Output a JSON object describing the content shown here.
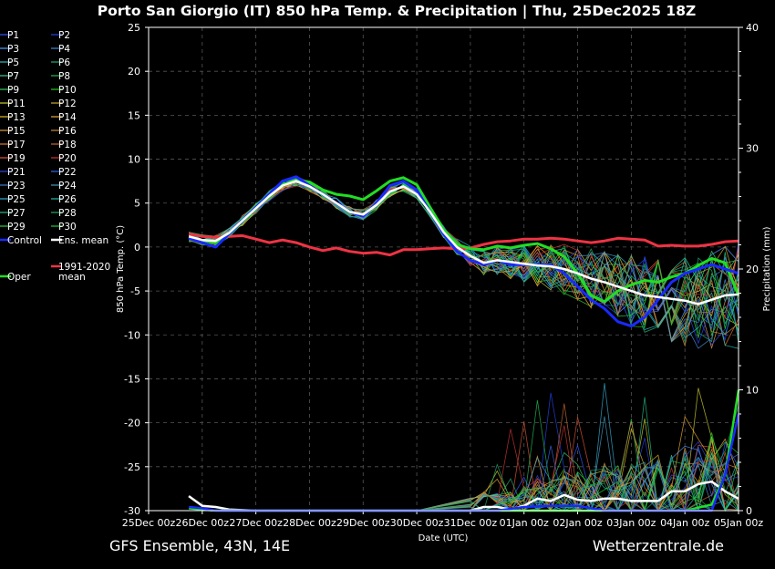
{
  "header": {
    "title": "Porto San Giorgio  (IT)  850 hPa Temp. & Precipitation | Thu, 25Dec2025 18Z"
  },
  "footer": {
    "model": "GFS Ensemble, 43N, 14E",
    "source": "Wetterzentrale.de"
  },
  "legend": {
    "col1": [
      {
        "label": "P1",
        "color": "#3355ff"
      },
      {
        "label": "P3",
        "color": "#5599ff"
      },
      {
        "label": "P5",
        "color": "#33bbbb"
      },
      {
        "label": "P7",
        "color": "#33cc99"
      },
      {
        "label": "P9",
        "color": "#33cc66"
      },
      {
        "label": "P11",
        "color": "#cccc33"
      },
      {
        "label": "P13",
        "color": "#ddbb22"
      },
      {
        "label": "P15",
        "color": "#dd9944"
      },
      {
        "label": "P17",
        "color": "#dd7733"
      },
      {
        "label": "P19",
        "color": "#dd5533"
      },
      {
        "label": "P21",
        "color": "#3344dd"
      },
      {
        "label": "P23",
        "color": "#4477cc"
      },
      {
        "label": "P25",
        "color": "#33aacc"
      },
      {
        "label": "P27",
        "color": "#22bb88"
      },
      {
        "label": "P29",
        "color": "#33cc44"
      }
    ],
    "col2": [
      {
        "label": "P2",
        "color": "#2244ee"
      },
      {
        "label": "P4",
        "color": "#4488cc"
      },
      {
        "label": "P6",
        "color": "#22aa77"
      },
      {
        "label": "P8",
        "color": "#22bb55"
      },
      {
        "label": "P10",
        "color": "#22cc22"
      },
      {
        "label": "P12",
        "color": "#ccaa33"
      },
      {
        "label": "P14",
        "color": "#eeaa33"
      },
      {
        "label": "P16",
        "color": "#cc8844"
      },
      {
        "label": "P18",
        "color": "#cc6633"
      },
      {
        "label": "P20",
        "color": "#cc3333"
      },
      {
        "label": "P22",
        "color": "#3366ee"
      },
      {
        "label": "P24",
        "color": "#4499bb"
      },
      {
        "label": "P26",
        "color": "#22bbaa"
      },
      {
        "label": "P28",
        "color": "#22aa66"
      },
      {
        "label": "P30",
        "color": "#22cc33"
      }
    ],
    "control": {
      "label": "Control",
      "color": "#1a2aff"
    },
    "ens_mean": {
      "label": "Ens. mean",
      "color": "#ffffff"
    },
    "clim": {
      "label_line1": "1991-2020",
      "label_line2": "mean",
      "color": "#ee3344"
    },
    "oper": {
      "label": "Oper",
      "color": "#22dd22"
    }
  },
  "colors": {
    "background": "#000000",
    "grid": "#555555",
    "axis": "#ffffff",
    "control": "#1a2aff",
    "ens_mean": "#ffffff",
    "clim": "#ee3344",
    "oper": "#22dd22"
  },
  "chart_data": {
    "type": "line",
    "xlabel": "Date (UTC)",
    "ylabel": "850 hPa Temp. (°C)",
    "y2label": "Precipitation (mm)",
    "ylim": [
      -30,
      25
    ],
    "y2lim": [
      0,
      40
    ],
    "xlim": [
      0,
      264
    ],
    "x_unit": "hours after 25Dec 00z",
    "x_ticks": [
      {
        "x": 0,
        "label": "25Dec 00z"
      },
      {
        "x": 24,
        "label": "26Dec 00z"
      },
      {
        "x": 48,
        "label": "27Dec 00z"
      },
      {
        "x": 72,
        "label": "28Dec 00z"
      },
      {
        "x": 96,
        "label": "29Dec 00z"
      },
      {
        "x": 120,
        "label": "30Dec 00z"
      },
      {
        "x": 144,
        "label": "31Dec 00z"
      },
      {
        "x": 168,
        "label": "01Jan 00z"
      },
      {
        "x": 192,
        "label": "02Jan 00z"
      },
      {
        "x": 216,
        "label": "03Jan 00z"
      },
      {
        "x": 240,
        "label": "04Jan 00z"
      },
      {
        "x": 264,
        "label": "05Jan 00z"
      }
    ],
    "y_ticks": [
      25,
      20,
      15,
      10,
      5,
      0,
      -5,
      -10,
      -15,
      -20,
      -25,
      -30
    ],
    "y2_ticks": [
      40,
      30,
      20,
      10,
      0
    ],
    "grid": true,
    "legend_position": "left-outside",
    "temperature_series": [
      {
        "name": "Control",
        "x": [
          18,
          24,
          30,
          36,
          42,
          48,
          54,
          60,
          66,
          72,
          78,
          84,
          90,
          96,
          102,
          108,
          114,
          120,
          126,
          132,
          138,
          144,
          150,
          156,
          162,
          168,
          174,
          180,
          186,
          192,
          198,
          204,
          210,
          216,
          222,
          228,
          234,
          240,
          246,
          252,
          258,
          264
        ],
        "values": [
          1,
          0.5,
          0,
          1.5,
          3,
          4.5,
          6,
          7.5,
          8,
          7,
          6,
          5,
          4,
          3.5,
          5,
          7,
          7.5,
          6.5,
          4,
          1.5,
          -0.5,
          -1.5,
          -2,
          -1.5,
          -2,
          -2,
          -2,
          -2,
          -3,
          -4.5,
          -6,
          -7,
          -8.5,
          -9,
          -8,
          -6,
          -4,
          -3,
          -2.5,
          -2,
          -2.5,
          -3
        ]
      },
      {
        "name": "Ens. mean",
        "x": [
          18,
          24,
          30,
          36,
          42,
          48,
          54,
          60,
          66,
          72,
          78,
          84,
          90,
          96,
          102,
          108,
          114,
          120,
          126,
          132,
          138,
          144,
          150,
          156,
          162,
          168,
          174,
          180,
          186,
          192,
          198,
          204,
          210,
          216,
          222,
          228,
          234,
          240,
          246,
          252,
          258,
          264
        ],
        "values": [
          1.2,
          0.8,
          0.7,
          1.6,
          3,
          4.4,
          5.8,
          7,
          7.5,
          6.9,
          6,
          5,
          4,
          3.7,
          4.8,
          6.3,
          6.9,
          6,
          4,
          1.7,
          0,
          -1,
          -1.8,
          -1.5,
          -1.7,
          -1.9,
          -2.1,
          -2.2,
          -2.5,
          -3,
          -3.6,
          -4,
          -4.5,
          -5,
          -5.5,
          -5.7,
          -5.9,
          -6.1,
          -6.5,
          -6,
          -5.5,
          -5.4
        ]
      },
      {
        "name": "1991-2020 mean",
        "x": [
          18,
          24,
          30,
          36,
          42,
          48,
          54,
          60,
          66,
          72,
          78,
          84,
          90,
          96,
          102,
          108,
          114,
          120,
          126,
          132,
          138,
          144,
          150,
          156,
          162,
          168,
          174,
          180,
          186,
          192,
          198,
          204,
          210,
          216,
          222,
          228,
          234,
          240,
          246,
          252,
          258,
          264
        ],
        "values": [
          1.5,
          1.2,
          1.1,
          1.2,
          1.3,
          0.9,
          0.5,
          0.8,
          0.5,
          0,
          -0.4,
          -0.1,
          -0.5,
          -0.7,
          -0.6,
          -0.9,
          -0.3,
          -0.3,
          -0.2,
          -0.1,
          -0.2,
          -0.1,
          0.3,
          0.6,
          0.7,
          0.9,
          0.9,
          1,
          0.9,
          0.7,
          0.5,
          0.7,
          1,
          0.9,
          0.8,
          0.1,
          0.2,
          0.1,
          0.1,
          0.3,
          0.6,
          0.7
        ]
      },
      {
        "name": "Oper",
        "x": [
          18,
          24,
          30,
          36,
          42,
          48,
          54,
          60,
          66,
          72,
          78,
          84,
          90,
          96,
          102,
          108,
          114,
          120,
          126,
          132,
          138,
          144,
          150,
          156,
          162,
          168,
          174,
          180,
          186,
          192,
          198,
          204,
          210,
          216,
          222,
          228,
          234,
          240,
          246,
          252,
          258,
          264
        ],
        "values": [
          1.1,
          0.7,
          0.5,
          1.4,
          3,
          4.6,
          6,
          7.1,
          7.6,
          7.4,
          6.5,
          6,
          5.8,
          5.4,
          6.4,
          7.5,
          7.9,
          7.1,
          4.5,
          2,
          0.3,
          -0.2,
          -0.3,
          0.1,
          -0.1,
          0.2,
          0.4,
          -0.2,
          -1.1,
          -3,
          -5.5,
          -6.2,
          -5,
          -4.3,
          -3.8,
          -4,
          -3.4,
          -3,
          -2.1,
          -1.3,
          -1.8,
          -5.5
        ]
      }
    ],
    "precipitation_series": [
      {
        "name": "Ens. mean",
        "x": [
          18,
          24,
          30,
          36,
          48,
          72,
          96,
          120,
          144,
          150,
          156,
          162,
          168,
          174,
          180,
          186,
          192,
          198,
          204,
          210,
          216,
          222,
          228,
          234,
          240,
          246,
          252,
          258,
          264
        ],
        "values": [
          1.2,
          0.4,
          0.3,
          0.1,
          0,
          0,
          0,
          0,
          0,
          0.3,
          0.3,
          0.1,
          0.4,
          1,
          0.8,
          1.3,
          0.9,
          0.8,
          1,
          1,
          0.8,
          0.8,
          0.8,
          1.6,
          1.6,
          2.2,
          2.4,
          1.6,
          1
        ]
      },
      {
        "name": "Oper",
        "x": [
          18,
          24,
          30,
          36,
          48,
          72,
          96,
          120,
          144,
          156,
          168,
          180,
          192,
          204,
          216,
          228,
          240,
          252,
          258,
          264
        ],
        "values": [
          0.2,
          0.1,
          0,
          0,
          0,
          0,
          0,
          0,
          0,
          0,
          0,
          0,
          0,
          0,
          0,
          0,
          0,
          0.5,
          3,
          10
        ]
      },
      {
        "name": "Control",
        "x": [
          18,
          24,
          30,
          36,
          48,
          72,
          96,
          120,
          144,
          156,
          168,
          180,
          192,
          204,
          216,
          228,
          240,
          252,
          258,
          264
        ],
        "values": [
          0.3,
          0.2,
          0,
          0,
          0,
          0,
          0,
          0,
          0,
          0,
          0.3,
          0.4,
          0.4,
          0,
          0,
          0,
          0,
          0,
          3,
          8
        ]
      }
    ]
  }
}
